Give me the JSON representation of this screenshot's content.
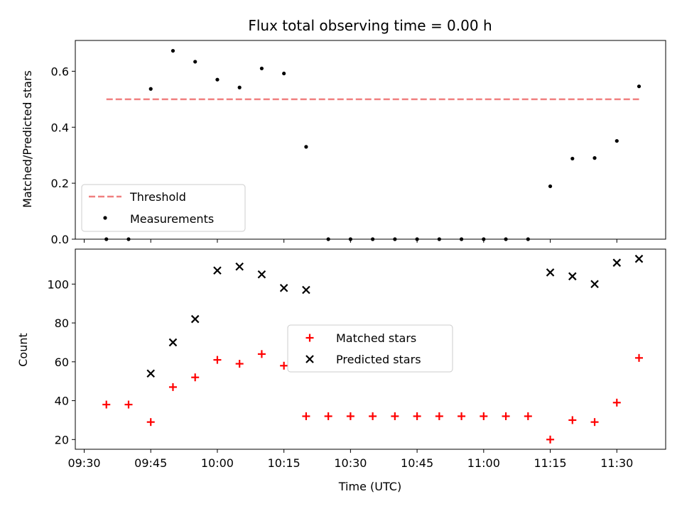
{
  "chart_data": [
    {
      "type": "scatter",
      "title": "Flux total observing time = 0.00 h",
      "ylabel": "Matched/Predicted stars",
      "ylim": [
        0,
        0.71
      ],
      "xlim": [
        "09:28",
        "11:41"
      ],
      "y_ticks": [
        0.0,
        0.2,
        0.4,
        0.6
      ],
      "y_tick_labels": [
        "0.0",
        "0.2",
        "0.4",
        "0.6"
      ],
      "legend": {
        "placement": "lower-left",
        "entries": [
          "Threshold",
          "Measurements"
        ]
      },
      "threshold": {
        "name": "Threshold",
        "x_start": "09:35",
        "x_end": "11:35",
        "y": 0.5,
        "color": "#f08080",
        "style": "dashed"
      },
      "series": [
        {
          "name": "Measurements",
          "marker": "dot",
          "color": "#000000",
          "x": [
            "09:35",
            "09:40",
            "09:45",
            "09:50",
            "09:55",
            "10:00",
            "10:05",
            "10:10",
            "10:15",
            "10:20",
            "10:25",
            "10:30",
            "10:35",
            "10:40",
            "10:45",
            "10:50",
            "10:55",
            "11:00",
            "11:05",
            "11:10",
            "11:15",
            "11:20",
            "11:25",
            "11:30",
            "11:35"
          ],
          "values": [
            0.0,
            0.0,
            0.537,
            0.673,
            0.634,
            0.57,
            0.542,
            0.61,
            0.592,
            0.33,
            0.0,
            0.0,
            0.0,
            0.0,
            0.0,
            0.0,
            0.0,
            0.0,
            0.0,
            0.0,
            0.189,
            0.288,
            0.29,
            0.351,
            0.546
          ]
        }
      ]
    },
    {
      "type": "scatter",
      "xlabel": "Time (UTC)",
      "ylabel": "Count",
      "ylim": [
        15,
        118
      ],
      "xlim": [
        "09:28",
        "11:41"
      ],
      "x_ticks": [
        "09:30",
        "09:45",
        "10:00",
        "10:15",
        "10:30",
        "10:45",
        "11:00",
        "11:15",
        "11:30"
      ],
      "y_ticks": [
        20,
        40,
        60,
        80,
        100
      ],
      "y_tick_labels": [
        "20",
        "40",
        "60",
        "80",
        "100"
      ],
      "legend": {
        "placement": "center",
        "entries": [
          "Matched stars",
          "Predicted stars"
        ]
      },
      "series": [
        {
          "name": "Matched stars",
          "marker": "plus",
          "color": "#ff0000",
          "x": [
            "09:35",
            "09:40",
            "09:45",
            "09:50",
            "09:55",
            "10:00",
            "10:05",
            "10:10",
            "10:15",
            "10:20",
            "10:25",
            "10:30",
            "10:35",
            "10:40",
            "10:45",
            "10:50",
            "10:55",
            "11:00",
            "11:05",
            "11:10",
            "11:15",
            "11:20",
            "11:25",
            "11:30",
            "11:35"
          ],
          "values": [
            38,
            38,
            29,
            47,
            52,
            61,
            59,
            64,
            58,
            32,
            32,
            32,
            32,
            32,
            32,
            32,
            32,
            32,
            32,
            32,
            20,
            30,
            29,
            39,
            62
          ]
        },
        {
          "name": "Predicted stars",
          "marker": "x",
          "color": "#000000",
          "x": [
            "09:45",
            "09:50",
            "09:55",
            "10:00",
            "10:05",
            "10:10",
            "10:15",
            "10:20",
            "11:15",
            "11:20",
            "11:25",
            "11:30",
            "11:35"
          ],
          "values": [
            54,
            70,
            82,
            107,
            109,
            105,
            98,
            97,
            106,
            104,
            100,
            111,
            113
          ]
        }
      ]
    }
  ]
}
